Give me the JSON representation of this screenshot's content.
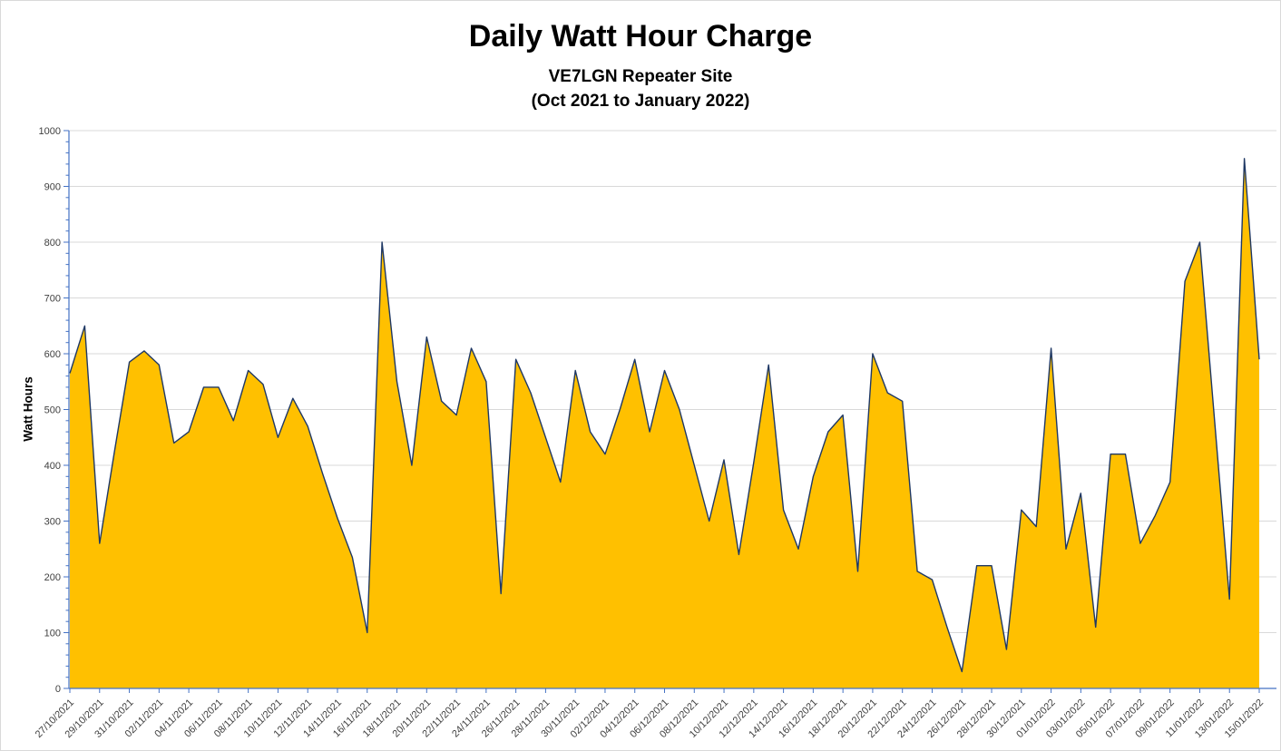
{
  "title": "Daily Watt Hour Charge",
  "subtitle1": "VE7LGN Repeater Site",
  "subtitle2": "(Oct 2021 to January 2022)",
  "chart_data": {
    "type": "area",
    "title": "Daily Watt Hour Charge",
    "subtitle": "VE7LGN Repeater Site (Oct 2021 to January 2022)",
    "xlabel": "",
    "ylabel": "Watt Hours",
    "ylim": [
      0,
      1000
    ],
    "y_major_step": 100,
    "y_minor_step": 20,
    "x_label_every": 2,
    "grid": true,
    "legend": "none",
    "x": [
      "27/10/2021",
      "28/10/2021",
      "29/10/2021",
      "30/10/2021",
      "31/10/2021",
      "01/11/2021",
      "02/11/2021",
      "03/11/2021",
      "04/11/2021",
      "05/11/2021",
      "06/11/2021",
      "07/11/2021",
      "08/11/2021",
      "09/11/2021",
      "10/11/2021",
      "11/11/2021",
      "12/11/2021",
      "13/11/2021",
      "14/11/2021",
      "15/11/2021",
      "16/11/2021",
      "17/11/2021",
      "18/11/2021",
      "19/11/2021",
      "20/11/2021",
      "21/11/2021",
      "22/11/2021",
      "23/11/2021",
      "24/11/2021",
      "25/11/2021",
      "26/11/2021",
      "27/11/2021",
      "28/11/2021",
      "29/11/2021",
      "30/11/2021",
      "01/12/2021",
      "02/12/2021",
      "03/12/2021",
      "04/12/2021",
      "05/12/2021",
      "06/12/2021",
      "07/12/2021",
      "08/12/2021",
      "09/12/2021",
      "10/12/2021",
      "11/12/2021",
      "12/12/2021",
      "13/12/2021",
      "14/12/2021",
      "15/12/2021",
      "16/12/2021",
      "17/12/2021",
      "18/12/2021",
      "19/12/2021",
      "20/12/2021",
      "21/12/2021",
      "22/12/2021",
      "23/12/2021",
      "24/12/2021",
      "25/12/2021",
      "26/12/2021",
      "27/12/2021",
      "28/12/2021",
      "29/12/2021",
      "30/12/2021",
      "31/12/2021",
      "01/01/2022",
      "02/01/2022",
      "03/01/2022",
      "04/01/2022",
      "05/01/2022",
      "06/01/2022",
      "07/01/2022",
      "08/01/2022",
      "09/01/2022",
      "10/01/2022",
      "11/01/2022",
      "12/01/2022",
      "13/01/2022",
      "14/01/2022",
      "15/01/2022"
    ],
    "values": [
      565,
      650,
      260,
      425,
      585,
      605,
      580,
      440,
      460,
      540,
      540,
      480,
      570,
      545,
      450,
      520,
      470,
      385,
      305,
      235,
      100,
      800,
      550,
      400,
      630,
      515,
      490,
      610,
      550,
      170,
      590,
      530,
      450,
      370,
      570,
      460,
      420,
      500,
      590,
      460,
      570,
      500,
      400,
      300,
      410,
      240,
      405,
      580,
      320,
      250,
      380,
      460,
      490,
      210,
      600,
      530,
      515,
      210,
      195,
      110,
      30,
      220,
      220,
      70,
      320,
      290,
      610,
      250,
      350,
      110,
      420,
      420,
      260,
      310,
      370,
      730,
      800,
      480,
      160,
      950,
      590
    ],
    "colors": {
      "area_fill": "#FFC000",
      "series_line": "#1F3864",
      "gridline": "#D9D9D9",
      "axis": "#4472C4",
      "tick_label": "#404040",
      "frame_border": "#D9D9D9",
      "background": "#FFFFFF"
    }
  }
}
